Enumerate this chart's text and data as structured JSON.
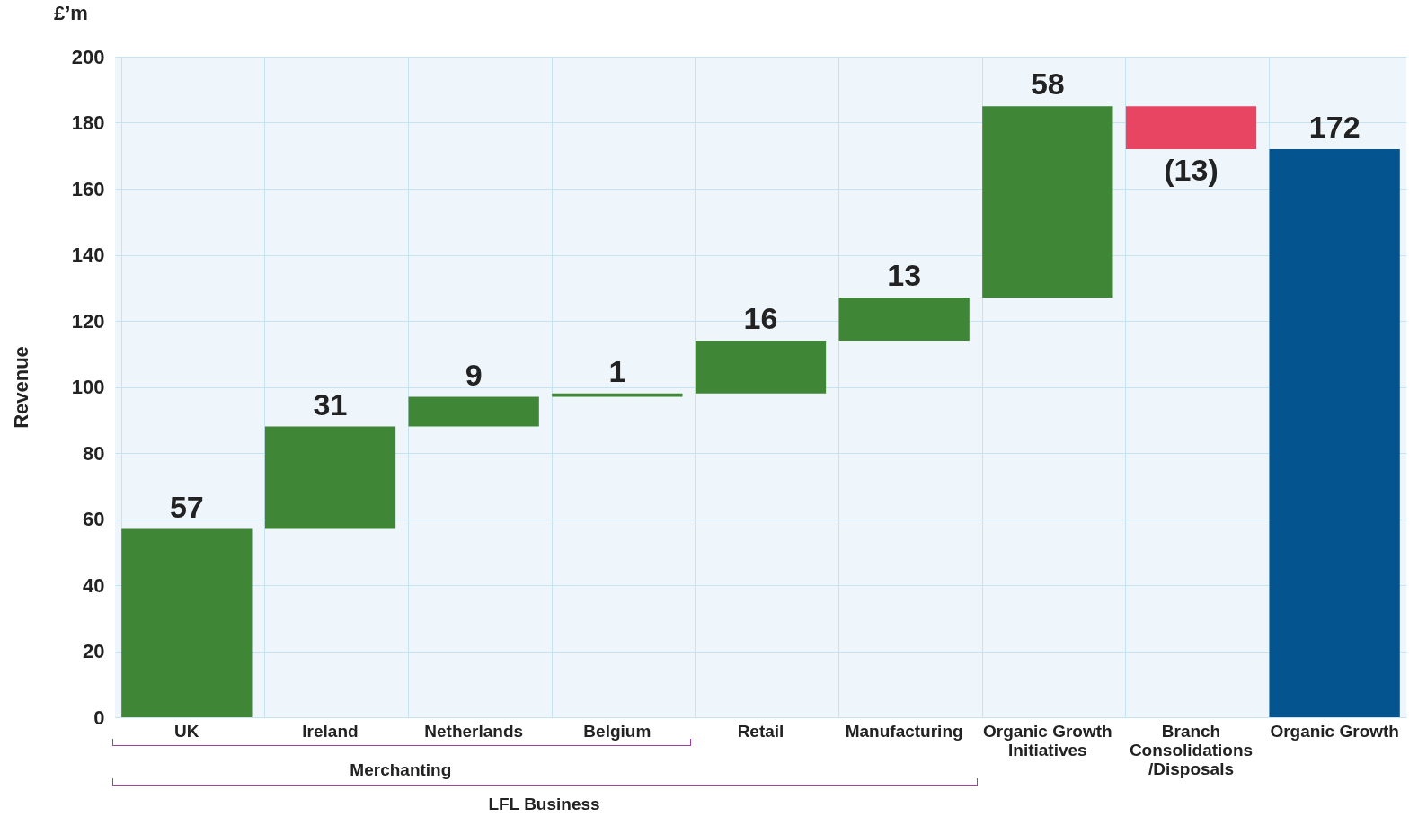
{
  "chart_data": {
    "type": "bar",
    "ylabel": "Revenue",
    "categories": [
      "UK",
      "Ireland",
      "Netherlands",
      "Belgium",
      "Retail",
      "Manufacturing",
      "Organic Growth Initiatives",
      "Branch Consolidations /Disposals",
      "Organic Growth"
    ],
    "values": [
      57,
      31,
      9,
      1,
      16,
      13,
      58,
      -13,
      172
    ],
    "base": [
      0,
      57,
      88,
      97,
      98,
      114,
      127,
      185,
      0
    ],
    "colors": [
      "#3f8636",
      "#3f8636",
      "#3f8636",
      "#3f8636",
      "#3f8636",
      "#3f8636",
      "#3f8636",
      "#e84563",
      "#04548f"
    ],
    "value_labels": [
      "57",
      "31",
      "9",
      "1",
      "16",
      "13",
      "58",
      "(13)",
      "172"
    ],
    "ylim": [
      0,
      200
    ],
    "yticks": [
      0,
      20,
      40,
      60,
      80,
      100,
      120,
      140,
      160,
      180,
      200
    ],
    "grid": true,
    "annotations": [
      "£’m",
      "Merchanting",
      "LFL Business"
    ]
  }
}
